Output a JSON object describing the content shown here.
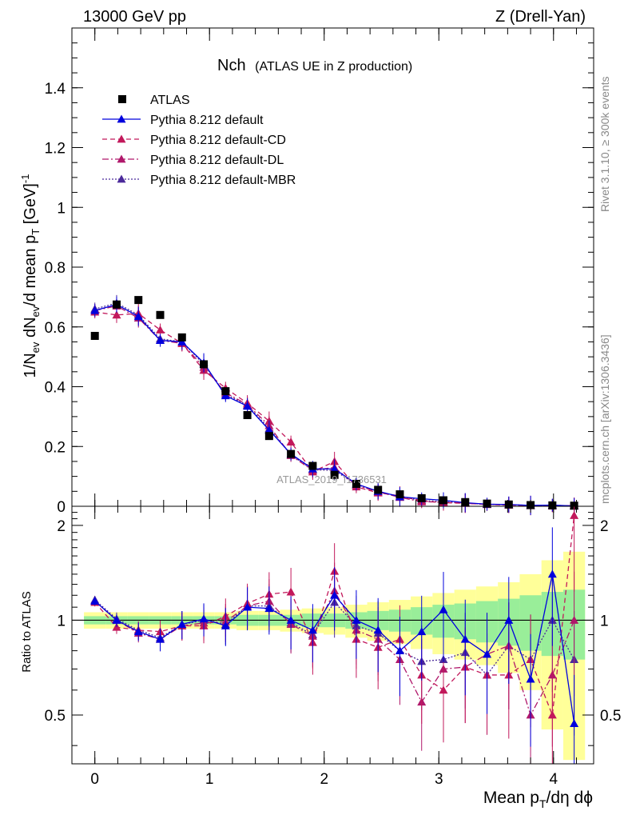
{
  "header": {
    "energy_label": "13000 GeV pp",
    "process_label": "Z (Drell-Yan)"
  },
  "side_labels": {
    "rivet": "Rivet 3.1.10, ≥ 300k events",
    "mcplots": "mcplots.cern.ch [arXiv:1306.3436]"
  },
  "watermark": "ATLAS_2019_I1736531",
  "chart_data": [
    {
      "type": "scatter",
      "panel": "main",
      "title": "Nch",
      "subtitle": "(ATLAS UE in Z production)",
      "ylabel": "1/N_ev dN_ev/d mean p_T [GeV]^-1",
      "xlabel": "Mean p_T/dη dϕ",
      "xlim": [
        -0.2,
        4.35
      ],
      "ylim": [
        0,
        1.6
      ],
      "x_ticks": [
        "0",
        "1",
        "2",
        "3",
        "4"
      ],
      "y_ticks": [
        "0",
        "0.2",
        "0.4",
        "0.6",
        "0.8",
        "1",
        "1.2",
        "1.4"
      ],
      "legend_position": "top-left",
      "x": [
        0.0,
        0.19,
        0.38,
        0.57,
        0.76,
        0.95,
        1.14,
        1.33,
        1.52,
        1.71,
        1.9,
        2.09,
        2.28,
        2.47,
        2.66,
        2.85,
        3.04,
        3.23,
        3.42,
        3.61,
        3.8,
        3.99,
        4.18
      ],
      "series": [
        {
          "name": "ATLAS",
          "style": "data",
          "color": "#000000",
          "values": [
            0.57,
            0.675,
            0.69,
            0.64,
            0.565,
            0.475,
            0.385,
            0.305,
            0.235,
            0.175,
            0.135,
            0.105,
            0.075,
            0.055,
            0.04,
            0.027,
            0.02,
            0.014,
            0.009,
            0.006,
            0.004,
            0.003,
            0.002
          ]
        },
        {
          "name": "Pythia 8.212 default",
          "style": "solid",
          "color": "#0000dd",
          "values": [
            0.655,
            0.675,
            0.635,
            0.555,
            0.55,
            0.48,
            0.37,
            0.335,
            0.255,
            0.175,
            0.125,
            0.125,
            0.075,
            0.05,
            0.032,
            0.025,
            0.02,
            0.012,
            0.007,
            0.006,
            0.003,
            0.004,
            0.001
          ]
        },
        {
          "name": "Pythia 8.212 default-CD",
          "style": "dashed",
          "color": "#c2185b",
          "values": [
            0.65,
            0.64,
            0.645,
            0.59,
            0.545,
            0.455,
            0.395,
            0.345,
            0.285,
            0.215,
            0.115,
            0.15,
            0.065,
            0.045,
            0.035,
            0.018,
            0.012,
            0.01,
            0.006,
            0.004,
            0.003,
            0.0015,
            0.0025
          ]
        },
        {
          "name": "Pythia 8.212 default-DL",
          "style": "dash-dot",
          "color": "#b0186b",
          "values": [
            0.655,
            0.67,
            0.63,
            0.555,
            0.545,
            0.465,
            0.38,
            0.34,
            0.27,
            0.17,
            0.12,
            0.13,
            0.07,
            0.048,
            0.03,
            0.015,
            0.014,
            0.01,
            0.007,
            0.005,
            0.002,
            0.002,
            0.002
          ]
        },
        {
          "name": "Pythia 8.212 default-MBR",
          "style": "dotted",
          "color": "#4b2a9a",
          "values": [
            0.66,
            0.68,
            0.64,
            0.56,
            0.55,
            0.475,
            0.375,
            0.338,
            0.26,
            0.172,
            0.122,
            0.12,
            0.072,
            0.05,
            0.032,
            0.02,
            0.015,
            0.011,
            0.006,
            0.005,
            0.003,
            0.003,
            0.0015
          ]
        }
      ]
    },
    {
      "type": "line",
      "panel": "ratio",
      "ylabel": "Ratio to ATLAS",
      "xlim": [
        -0.2,
        4.35
      ],
      "ylim": [
        0.35,
        2.3
      ],
      "y_ticks": [
        "0.5",
        "1",
        "2"
      ],
      "x": [
        0.0,
        0.19,
        0.38,
        0.57,
        0.76,
        0.95,
        1.14,
        1.33,
        1.52,
        1.71,
        1.9,
        2.09,
        2.28,
        2.47,
        2.66,
        2.85,
        3.04,
        3.23,
        3.42,
        3.61,
        3.8,
        3.99,
        4.18
      ],
      "band_inner_halfwidth": [
        0.03,
        0.03,
        0.03,
        0.03,
        0.03,
        0.03,
        0.03,
        0.04,
        0.04,
        0.04,
        0.05,
        0.05,
        0.06,
        0.07,
        0.08,
        0.1,
        0.12,
        0.13,
        0.15,
        0.17,
        0.2,
        0.23,
        0.25
      ],
      "band_outer_halfwidth": [
        0.06,
        0.06,
        0.06,
        0.06,
        0.06,
        0.06,
        0.06,
        0.07,
        0.07,
        0.08,
        0.09,
        0.1,
        0.12,
        0.14,
        0.16,
        0.19,
        0.22,
        0.25,
        0.28,
        0.32,
        0.4,
        0.55,
        0.65
      ],
      "series": [
        {
          "name": "Pythia 8.212 default",
          "color": "#0000dd",
          "values": [
            1.15,
            1.0,
            0.92,
            0.87,
            0.97,
            1.01,
            0.96,
            1.1,
            1.09,
            1.0,
            0.93,
            1.2,
            1.0,
            0.93,
            0.8,
            0.92,
            1.08,
            0.87,
            0.78,
            1.0,
            0.65,
            1.4,
            0.47
          ]
        },
        {
          "name": "Pythia 8.212 default-CD",
          "color": "#c2185b",
          "values": [
            1.14,
            0.95,
            0.93,
            0.92,
            0.96,
            0.96,
            1.03,
            1.13,
            1.21,
            1.23,
            0.85,
            1.43,
            0.87,
            0.82,
            0.87,
            0.67,
            0.6,
            0.71,
            0.67,
            0.67,
            0.75,
            0.5,
            2.15
          ]
        },
        {
          "name": "Pythia 8.212 default-DL",
          "color": "#b0186b",
          "values": [
            1.15,
            1.0,
            0.91,
            0.87,
            0.96,
            0.98,
            0.99,
            1.11,
            1.15,
            0.97,
            0.89,
            1.24,
            0.93,
            0.87,
            0.75,
            0.55,
            0.7,
            0.71,
            0.78,
            0.83,
            0.5,
            0.67,
            1.0
          ]
        },
        {
          "name": "Pythia 8.212 default-MBR",
          "color": "#4b2a9a",
          "values": [
            1.16,
            1.01,
            0.93,
            0.88,
            0.97,
            1.0,
            0.97,
            1.11,
            1.11,
            0.98,
            0.9,
            1.14,
            0.96,
            0.91,
            0.8,
            0.74,
            0.75,
            0.79,
            0.67,
            0.83,
            0.75,
            1.0,
            0.75
          ]
        }
      ]
    }
  ]
}
